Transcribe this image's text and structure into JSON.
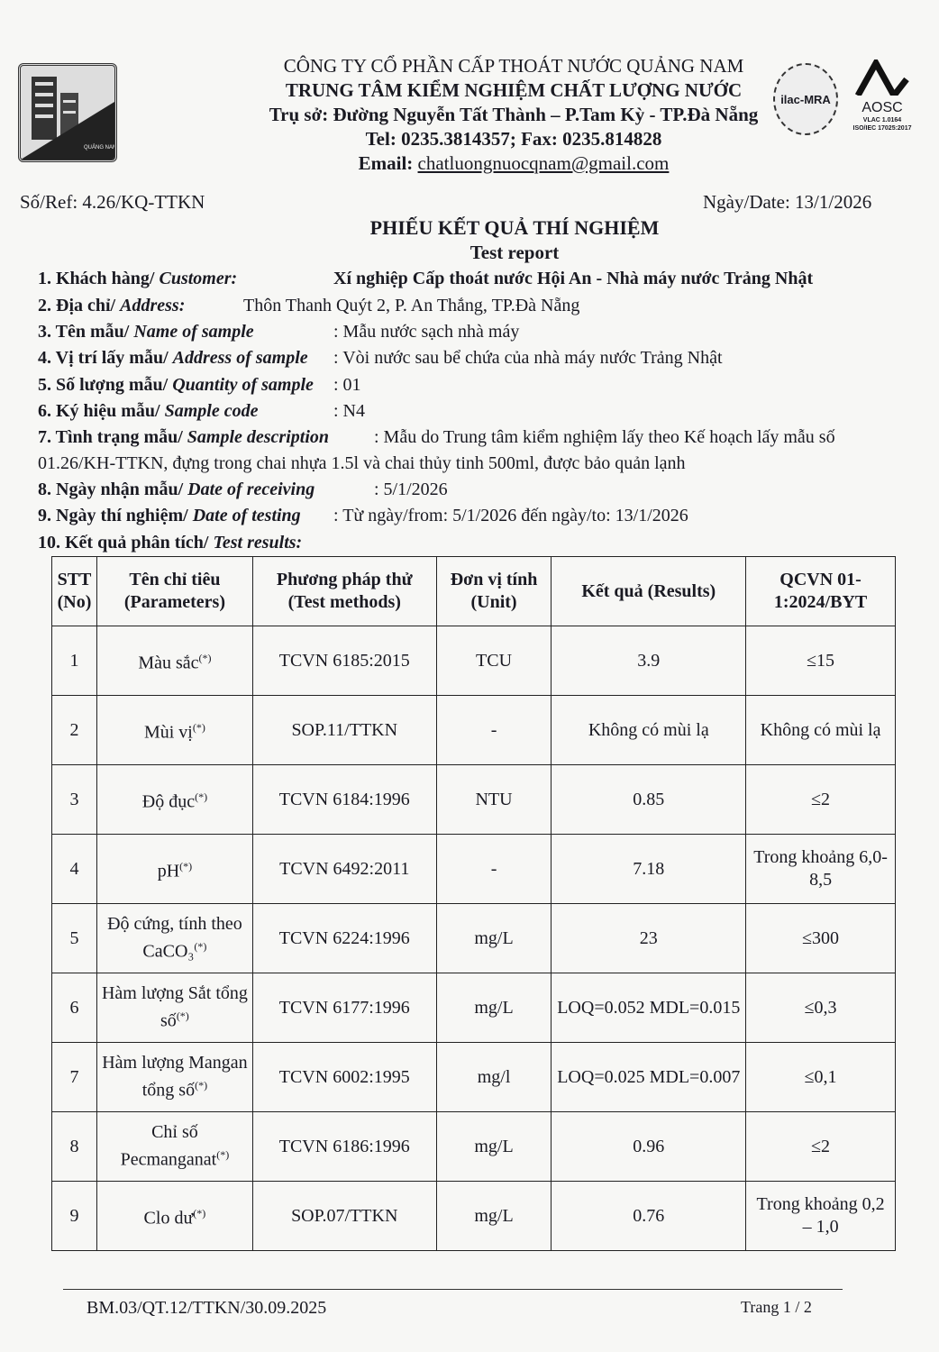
{
  "header": {
    "company": "CÔNG TY CỔ PHẦN CẤP THOÁT NƯỚC QUẢNG NAM",
    "center": "TRUNG TÂM KIỂM NGHIỆM CHẤT LƯỢNG NƯỚC",
    "address": "Trụ sở: Đường Nguyễn Tất Thành – P.Tam Kỳ -  TP.Đà Nẵng",
    "phone": "Tel: 0235.3814357; Fax: 0235.814828",
    "email_label": "Email:",
    "email": "chatluongnuocqnam@gmail.com",
    "logo_text": "QUẢNG NAM WSC",
    "ilac": "ilac-MRA",
    "aosc": "AOSC",
    "vlac": "VLAC 1.0164",
    "iso": "ISO/IEC 17025:2017"
  },
  "ref": "Số/Ref: 4.26/KQ-TTKN",
  "date": "Ngày/Date: 13/1/2026",
  "title": "PHIẾU KẾT QUẢ THÍ NGHIỆM",
  "subtitle": "Test report",
  "fields": [
    {
      "label": "1. Khách hàng/ ",
      "label_en": "Customer:",
      "value": "Xí nghiệp Cấp thoát nước Hội An - Nhà máy nước Trảng Nhật"
    },
    {
      "label": "2. Địa chỉ/ ",
      "label_en": "Address:",
      "value": "Thôn Thanh Quýt 2, P. An Thắng, TP.Đà Nẵng"
    },
    {
      "label": "3. Tên mẫu/ ",
      "label_en": "Name of sample",
      "value": ": Mẫu nước sạch nhà máy"
    },
    {
      "label": "4. Vị trí lấy mẫu/ ",
      "label_en": "Address of sample",
      "value": ": Vòi nước sau bể chứa của nhà máy nước Trảng Nhật"
    },
    {
      "label": "5. Số lượng mẫu/ ",
      "label_en": "Quantity of sample",
      "value": ": 01"
    },
    {
      "label": "6. Ký hiệu mẫu/ ",
      "label_en": "Sample code",
      "value": ": N4"
    },
    {
      "label": "7. Tình trạng mẫu/ ",
      "label_en": "Sample description",
      "value": ": Mẫu do Trung tâm kiểm nghiệm lấy theo Kế hoạch lấy mẫu số",
      "value2": "01.26/KH-TTKN, đựng trong chai nhựa 1.5l và chai thủy tinh 500ml, được bảo quản lạnh"
    },
    {
      "label": "8. Ngày nhận mẫu/ ",
      "label_en": "Date of receiving",
      "value": ": 5/1/2026"
    },
    {
      "label": "9. Ngày thí nghiệm/ ",
      "label_en": "Date of testing",
      "value": ": Từ ngày/from: 5/1/2026  đến ngày/to: 13/1/2026"
    },
    {
      "label": "10. Kết quả phân tích/ ",
      "label_en": "Test results:",
      "value": ""
    }
  ],
  "table": {
    "headers": [
      "STT (No)",
      "Tên chỉ tiêu (Parameters)",
      "Phương pháp thử (Test methods)",
      "Đơn vị tính (Unit)",
      "Kết quả (Results)",
      "QCVN 01-1:2024/BYT"
    ],
    "rows": [
      [
        "1",
        "Màu sắc",
        "TCVN 6185:2015",
        "TCU",
        "3.9",
        "≤15"
      ],
      [
        "2",
        "Mùi vị",
        "SOP.11/TTKN",
        "-",
        "Không có mùi lạ",
        "Không có mùi lạ"
      ],
      [
        "3",
        "Độ đục",
        "TCVN 6184:1996",
        "NTU",
        "0.85",
        "≤2"
      ],
      [
        "4",
        "pH",
        "TCVN 6492:2011",
        "-",
        "7.18",
        "Trong khoảng 6,0-8,5"
      ],
      [
        "5",
        "Độ cứng, tính theo CaCO₃",
        "TCVN 6224:1996",
        "mg/L",
        "23",
        "≤300"
      ],
      [
        "6",
        "Hàm lượng Sắt tổng số",
        "TCVN 6177:1996",
        "mg/L",
        "LOQ=0.052 MDL=0.015",
        "≤0,3"
      ],
      [
        "7",
        "Hàm lượng Mangan tổng số",
        "TCVN 6002:1995",
        "mg/l",
        "LOQ=0.025 MDL=0.007",
        "≤0,1"
      ],
      [
        "8",
        "Chỉ số Pecmanganat",
        "TCVN 6186:1996",
        "mg/L",
        "0.96",
        "≤2"
      ],
      [
        "9",
        "Clo dư",
        "SOP.07/TTKN",
        "mg/L",
        "0.76",
        "Trong khoảng 0,2 – 1,0"
      ]
    ],
    "mark": "(*)"
  },
  "footer": {
    "code": "BM.03/QT.12/TTKN/30.09.2025",
    "page": "Trang 1 / 2"
  }
}
